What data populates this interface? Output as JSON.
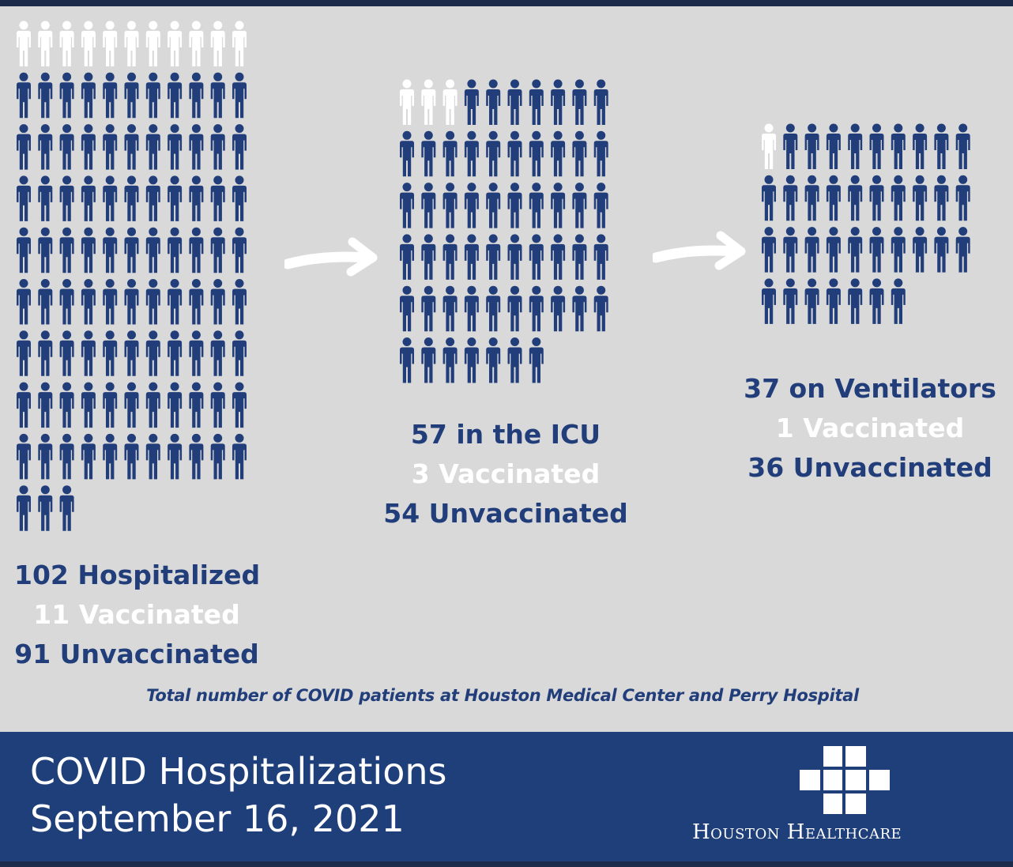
{
  "colors": {
    "background": "#d9d9d9",
    "unvaccinated": "#213e7a",
    "vaccinated": "#ffffff",
    "banner": "#1f3f7a"
  },
  "chart_data": [
    {
      "type": "pictogram",
      "title": "102 Hospitalized",
      "total": 102,
      "series": [
        {
          "name": "Vaccinated",
          "value": 11,
          "label": "11 Vaccinated"
        },
        {
          "name": "Unvaccinated",
          "value": 91,
          "label": "91 Unvaccinated"
        }
      ],
      "icons_per_row": 11
    },
    {
      "type": "pictogram",
      "title": "57 in the ICU",
      "total": 57,
      "series": [
        {
          "name": "Vaccinated",
          "value": 3,
          "label": "3 Vaccinated"
        },
        {
          "name": "Unvaccinated",
          "value": 54,
          "label": "54 Unvaccinated"
        }
      ],
      "icons_per_row": 10
    },
    {
      "type": "pictogram",
      "title": "37 on Ventilators",
      "total": 37,
      "series": [
        {
          "name": "Vaccinated",
          "value": 1,
          "label": "1 Vaccinated"
        },
        {
          "name": "Unvaccinated",
          "value": 36,
          "label": "36 Unvaccinated"
        }
      ],
      "icons_per_row": 10
    }
  ],
  "footnote": "Total number of COVID patients at Houston Medical Center and Perry Hospital",
  "banner": {
    "title_line1": "COVID Hospitalizations",
    "title_line2": "September 16, 2021",
    "logo_text": "Houston Healthcare"
  }
}
